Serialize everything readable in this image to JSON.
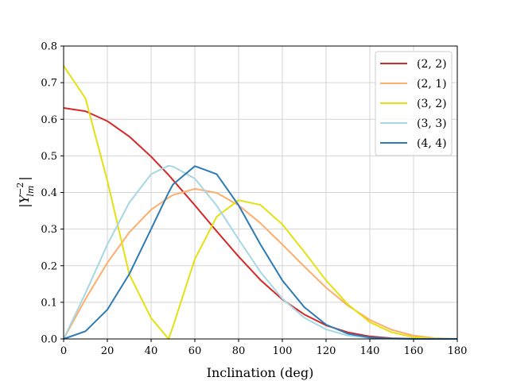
{
  "chart_data": {
    "type": "line",
    "xlabel": "Inclination (deg)",
    "ylabel_parts": {
      "base": "|Y",
      "sup": "−2",
      "sub": "lm",
      "close": "|"
    },
    "xlim": [
      0,
      180
    ],
    "ylim": [
      0,
      0.8
    ],
    "xticks": [
      0,
      20,
      40,
      60,
      80,
      100,
      120,
      140,
      160,
      180
    ],
    "yticks": [
      0.0,
      0.1,
      0.2,
      0.3,
      0.4,
      0.5,
      0.6,
      0.7,
      0.8
    ],
    "xtick_labels": [
      "0",
      "20",
      "40",
      "60",
      "80",
      "100",
      "120",
      "140",
      "160",
      "180"
    ],
    "ytick_labels": [
      "0.0",
      "0.1",
      "0.2",
      "0.3",
      "0.4",
      "0.5",
      "0.6",
      "0.7",
      "0.8"
    ],
    "grid": true,
    "legend_position": "top-right",
    "x": [
      0,
      10,
      20,
      30,
      40,
      48,
      50,
      60,
      70,
      80,
      90,
      100,
      110,
      120,
      130,
      140,
      150,
      160,
      170,
      180
    ],
    "series": [
      {
        "name": "(2, 2)",
        "color": "#d62728",
        "values": [
          0.631,
          0.622,
          0.595,
          0.553,
          0.498,
          0.448,
          0.434,
          0.365,
          0.294,
          0.225,
          0.161,
          0.108,
          0.067,
          0.037,
          0.018,
          0.007,
          0.002,
          0.0005,
          0.0,
          0.0
        ]
      },
      {
        "name": "(2, 1)",
        "color": "#fdae6b",
        "values": [
          0.0,
          0.109,
          0.208,
          0.291,
          0.353,
          0.386,
          0.393,
          0.41,
          0.399,
          0.365,
          0.316,
          0.258,
          0.198,
          0.14,
          0.091,
          0.052,
          0.025,
          0.009,
          0.002,
          0.0
        ]
      },
      {
        "name": "(3, 2)",
        "color": "#e5e010",
        "values": [
          0.746,
          0.657,
          0.432,
          0.177,
          0.057,
          0.0,
          0.034,
          0.218,
          0.334,
          0.379,
          0.366,
          0.313,
          0.238,
          0.16,
          0.094,
          0.046,
          0.018,
          0.005,
          0.0005,
          0.0
        ]
      },
      {
        "name": "(3, 3)",
        "color": "#a6d7e3",
        "values": [
          0.0,
          0.125,
          0.258,
          0.372,
          0.45,
          0.473,
          0.471,
          0.438,
          0.364,
          0.272,
          0.183,
          0.11,
          0.058,
          0.026,
          0.009,
          0.003,
          0.0005,
          0.0,
          0.0,
          0.0
        ]
      },
      {
        "name": "(4, 4)",
        "color": "#2c7bb6",
        "values": [
          0.0,
          0.021,
          0.08,
          0.177,
          0.3,
          0.4,
          0.422,
          0.472,
          0.45,
          0.365,
          0.258,
          0.16,
          0.087,
          0.039,
          0.014,
          0.004,
          0.001,
          0.0,
          0.0,
          0.0
        ]
      }
    ]
  }
}
